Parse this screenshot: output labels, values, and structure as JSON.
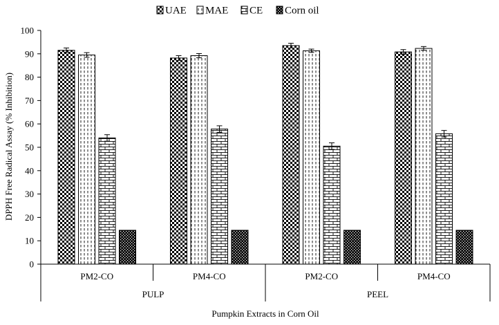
{
  "chart_data": {
    "type": "bar",
    "xlabel": "Pumpkin Extracts in Corn Oil",
    "ylabel": "DPPH Free Radical Assay (% Inhibition)",
    "ylim": [
      0,
      100
    ],
    "yticks": [
      0,
      10,
      20,
      30,
      40,
      50,
      60,
      70,
      80,
      90,
      100
    ],
    "legend_position": "top",
    "categories": [
      "PM2-CO",
      "PM4-CO",
      "PM2-CO",
      "PM4-CO"
    ],
    "groups": [
      {
        "label": "PULP",
        "categories": [
          "PM2-CO",
          "PM4-CO"
        ]
      },
      {
        "label": "PEEL",
        "categories": [
          "PM2-CO",
          "PM4-CO"
        ]
      }
    ],
    "series": [
      {
        "name": "UAE",
        "pattern": "checker",
        "values": [
          91.5,
          88.2,
          93.5,
          90.8
        ],
        "errors": [
          1.0,
          1.0,
          1.0,
          1.0
        ]
      },
      {
        "name": "MAE",
        "pattern": "dashed-vertical",
        "values": [
          89.5,
          89.2,
          91.3,
          92.3
        ],
        "errors": [
          1.0,
          0.9,
          0.7,
          0.8
        ]
      },
      {
        "name": "CE",
        "pattern": "brick",
        "values": [
          54.0,
          57.8,
          50.5,
          55.8
        ],
        "errors": [
          1.4,
          1.4,
          1.4,
          1.4
        ]
      },
      {
        "name": "Corn oil",
        "pattern": "dense-checker",
        "values": [
          14.5,
          14.5,
          14.5,
          14.5
        ],
        "errors": [
          0,
          0,
          0,
          0
        ]
      }
    ]
  }
}
